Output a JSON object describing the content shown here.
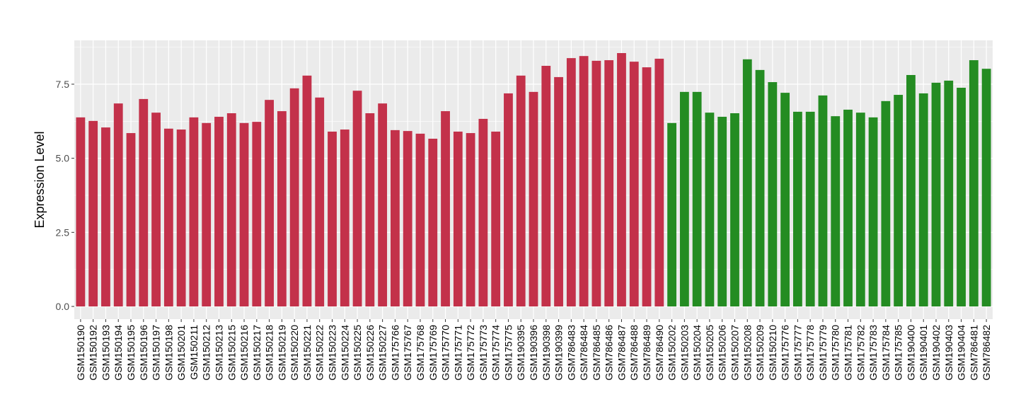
{
  "chart_data": {
    "type": "bar",
    "title": "",
    "xlabel": "",
    "ylabel": "Expression Level",
    "ylim": [
      -0.43,
      8.98
    ],
    "yticks": [
      0.0,
      2.5,
      5.0,
      7.5
    ],
    "ytick_labels": [
      "0.0",
      "2.5",
      "5.0",
      "7.5"
    ],
    "grid": true,
    "legend": "none",
    "colors": {
      "group1": "#C3314A",
      "group2": "#248C22",
      "panel": "#EBEBEB",
      "grid": "#FFFFFF"
    },
    "categories": [
      "GSM150190",
      "GSM150192",
      "GSM150193",
      "GSM150194",
      "GSM150195",
      "GSM150196",
      "GSM150197",
      "GSM150198",
      "GSM150201",
      "GSM150211",
      "GSM150212",
      "GSM150213",
      "GSM150215",
      "GSM150216",
      "GSM150217",
      "GSM150218",
      "GSM150219",
      "GSM150220",
      "GSM150221",
      "GSM150222",
      "GSM150223",
      "GSM150224",
      "GSM150225",
      "GSM150226",
      "GSM150227",
      "GSM175766",
      "GSM175767",
      "GSM175768",
      "GSM175769",
      "GSM175770",
      "GSM175771",
      "GSM175772",
      "GSM175773",
      "GSM175774",
      "GSM175775",
      "GSM190395",
      "GSM190396",
      "GSM190398",
      "GSM190399",
      "GSM786483",
      "GSM786484",
      "GSM786485",
      "GSM786486",
      "GSM786487",
      "GSM786488",
      "GSM786489",
      "GSM786490",
      "GSM150202",
      "GSM150203",
      "GSM150204",
      "GSM150205",
      "GSM150206",
      "GSM150207",
      "GSM150208",
      "GSM150209",
      "GSM150210",
      "GSM175776",
      "GSM175777",
      "GSM175778",
      "GSM175779",
      "GSM175780",
      "GSM175781",
      "GSM175782",
      "GSM175783",
      "GSM175784",
      "GSM175785",
      "GSM190400",
      "GSM190401",
      "GSM190402",
      "GSM190403",
      "GSM190404",
      "GSM786481",
      "GSM786482"
    ],
    "values": [
      6.38,
      6.26,
      6.04,
      6.85,
      5.85,
      7.0,
      6.54,
      6.0,
      5.97,
      6.38,
      6.19,
      6.4,
      6.52,
      6.19,
      6.23,
      6.97,
      6.59,
      7.36,
      7.79,
      7.05,
      5.9,
      5.97,
      7.28,
      6.52,
      6.85,
      5.95,
      5.92,
      5.83,
      5.66,
      6.59,
      5.9,
      5.85,
      6.33,
      5.9,
      7.19,
      7.79,
      7.24,
      8.12,
      7.74,
      8.38,
      8.45,
      8.29,
      8.31,
      8.55,
      8.26,
      8.07,
      8.36,
      6.19,
      7.24,
      7.24,
      6.54,
      6.4,
      6.52,
      8.34,
      7.98,
      7.57,
      7.21,
      6.57,
      6.57,
      7.12,
      6.42,
      6.64,
      6.54,
      6.38,
      6.93,
      7.14,
      7.81,
      7.19,
      7.55,
      7.62,
      7.38,
      8.31,
      8.02
    ],
    "groups": [
      "group1",
      "group1",
      "group1",
      "group1",
      "group1",
      "group1",
      "group1",
      "group1",
      "group1",
      "group1",
      "group1",
      "group1",
      "group1",
      "group1",
      "group1",
      "group1",
      "group1",
      "group1",
      "group1",
      "group1",
      "group1",
      "group1",
      "group1",
      "group1",
      "group1",
      "group1",
      "group1",
      "group1",
      "group1",
      "group1",
      "group1",
      "group1",
      "group1",
      "group1",
      "group1",
      "group1",
      "group1",
      "group1",
      "group1",
      "group1",
      "group1",
      "group1",
      "group1",
      "group1",
      "group1",
      "group1",
      "group1",
      "group2",
      "group2",
      "group2",
      "group2",
      "group2",
      "group2",
      "group2",
      "group2",
      "group2",
      "group2",
      "group2",
      "group2",
      "group2",
      "group2",
      "group2",
      "group2",
      "group2",
      "group2",
      "group2",
      "group2",
      "group2",
      "group2",
      "group2",
      "group2",
      "group2",
      "group2"
    ]
  }
}
